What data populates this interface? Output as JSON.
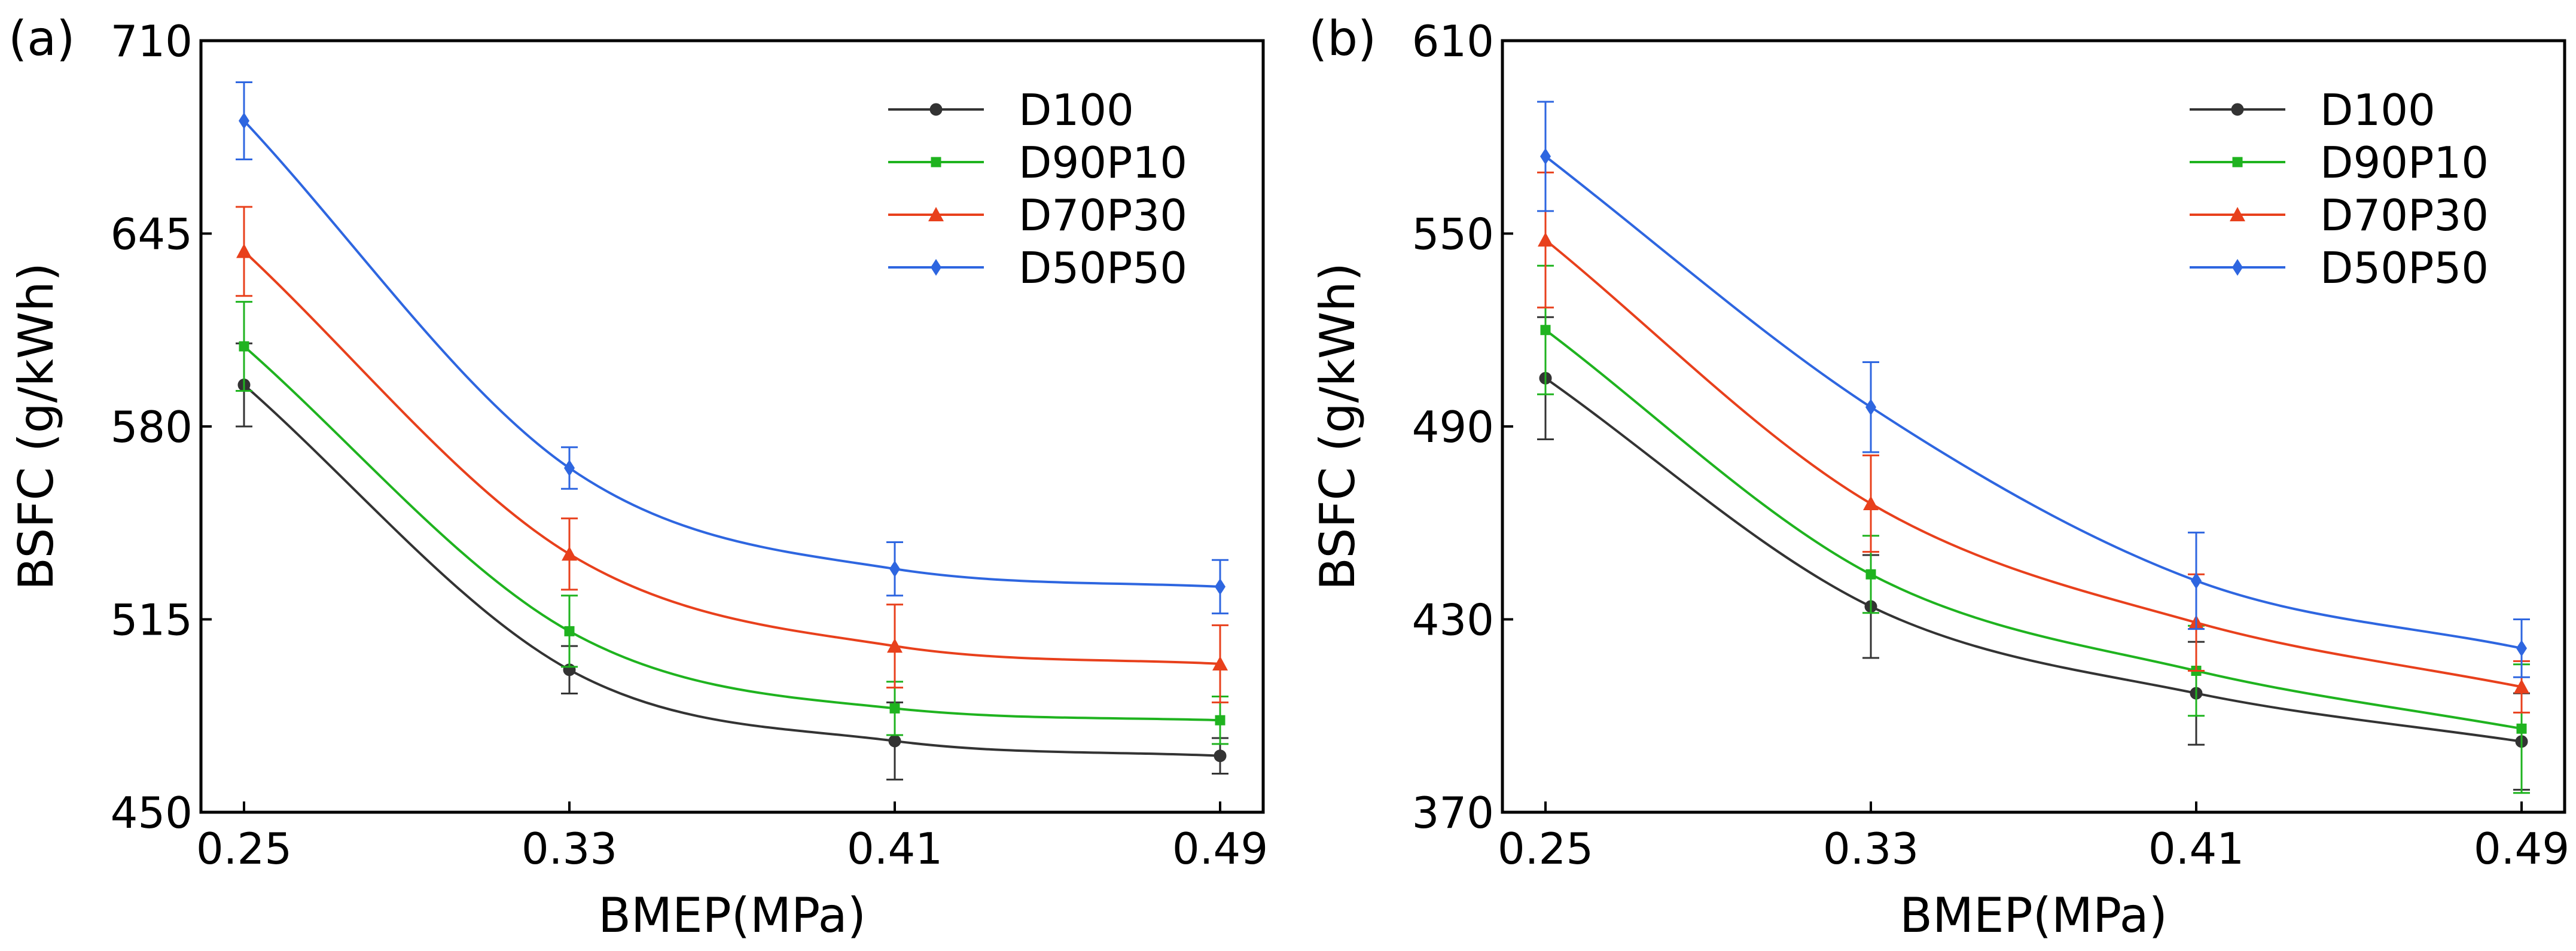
{
  "chart_data": [
    {
      "type": "line",
      "panel_label": "(a)",
      "xlabel": "BMEP(MPa)",
      "ylabel": "BSFC (g/kWh)",
      "x": [
        0.25,
        0.33,
        0.41,
        0.49
      ],
      "x_tick_labels": [
        "0.25",
        "0.33",
        "0.41",
        "0.49"
      ],
      "ylim": [
        450,
        710
      ],
      "y_ticks": [
        450,
        515,
        580,
        645,
        710
      ],
      "y_tick_labels": [
        "450",
        "515",
        "580",
        "645",
        "710"
      ],
      "grid": false,
      "legend_position": "top-right",
      "series": [
        {
          "name": "D100",
          "color": "#333333",
          "marker": "circle",
          "values": [
            594,
            498,
            474,
            469
          ],
          "errors": [
            14,
            8,
            13,
            6
          ]
        },
        {
          "name": "D90P10",
          "color": "#1fb31f",
          "marker": "square",
          "values": [
            607,
            511,
            485,
            481
          ],
          "errors": [
            15,
            12,
            9,
            8
          ]
        },
        {
          "name": "D70P30",
          "color": "#e8401c",
          "marker": "triangle",
          "values": [
            639,
            537,
            506,
            500
          ],
          "errors": [
            15,
            12,
            14,
            13
          ]
        },
        {
          "name": "D50P50",
          "color": "#2e66e0",
          "marker": "diamond",
          "values": [
            683,
            566,
            532,
            526
          ],
          "errors": [
            13,
            7,
            9,
            9
          ]
        }
      ]
    },
    {
      "type": "line",
      "panel_label": "(b)",
      "xlabel": "BMEP(MPa)",
      "ylabel": "BSFC (g/kWh)",
      "x": [
        0.25,
        0.33,
        0.41,
        0.49
      ],
      "x_tick_labels": [
        "0.25",
        "0.33",
        "0.41",
        "0.49"
      ],
      "ylim": [
        370,
        610
      ],
      "y_ticks": [
        370,
        430,
        490,
        550,
        610
      ],
      "y_tick_labels": [
        "370",
        "430",
        "490",
        "550",
        "610"
      ],
      "grid": false,
      "legend_position": "top-right",
      "series": [
        {
          "name": "D100",
          "color": "#333333",
          "marker": "circle",
          "values": [
            505,
            434,
            407,
            392
          ],
          "errors": [
            19,
            16,
            16,
            15
          ]
        },
        {
          "name": "D90P10",
          "color": "#1fb31f",
          "marker": "square",
          "values": [
            520,
            444,
            414,
            396
          ],
          "errors": [
            20,
            12,
            14,
            20
          ]
        },
        {
          "name": "D70P30",
          "color": "#e8401c",
          "marker": "triangle",
          "values": [
            548,
            466,
            429,
            409
          ],
          "errors": [
            21,
            15,
            15,
            8
          ]
        },
        {
          "name": "D50P50",
          "color": "#2e66e0",
          "marker": "diamond",
          "values": [
            574,
            496,
            442,
            421
          ],
          "errors": [
            17,
            14,
            15,
            9
          ]
        }
      ]
    }
  ]
}
